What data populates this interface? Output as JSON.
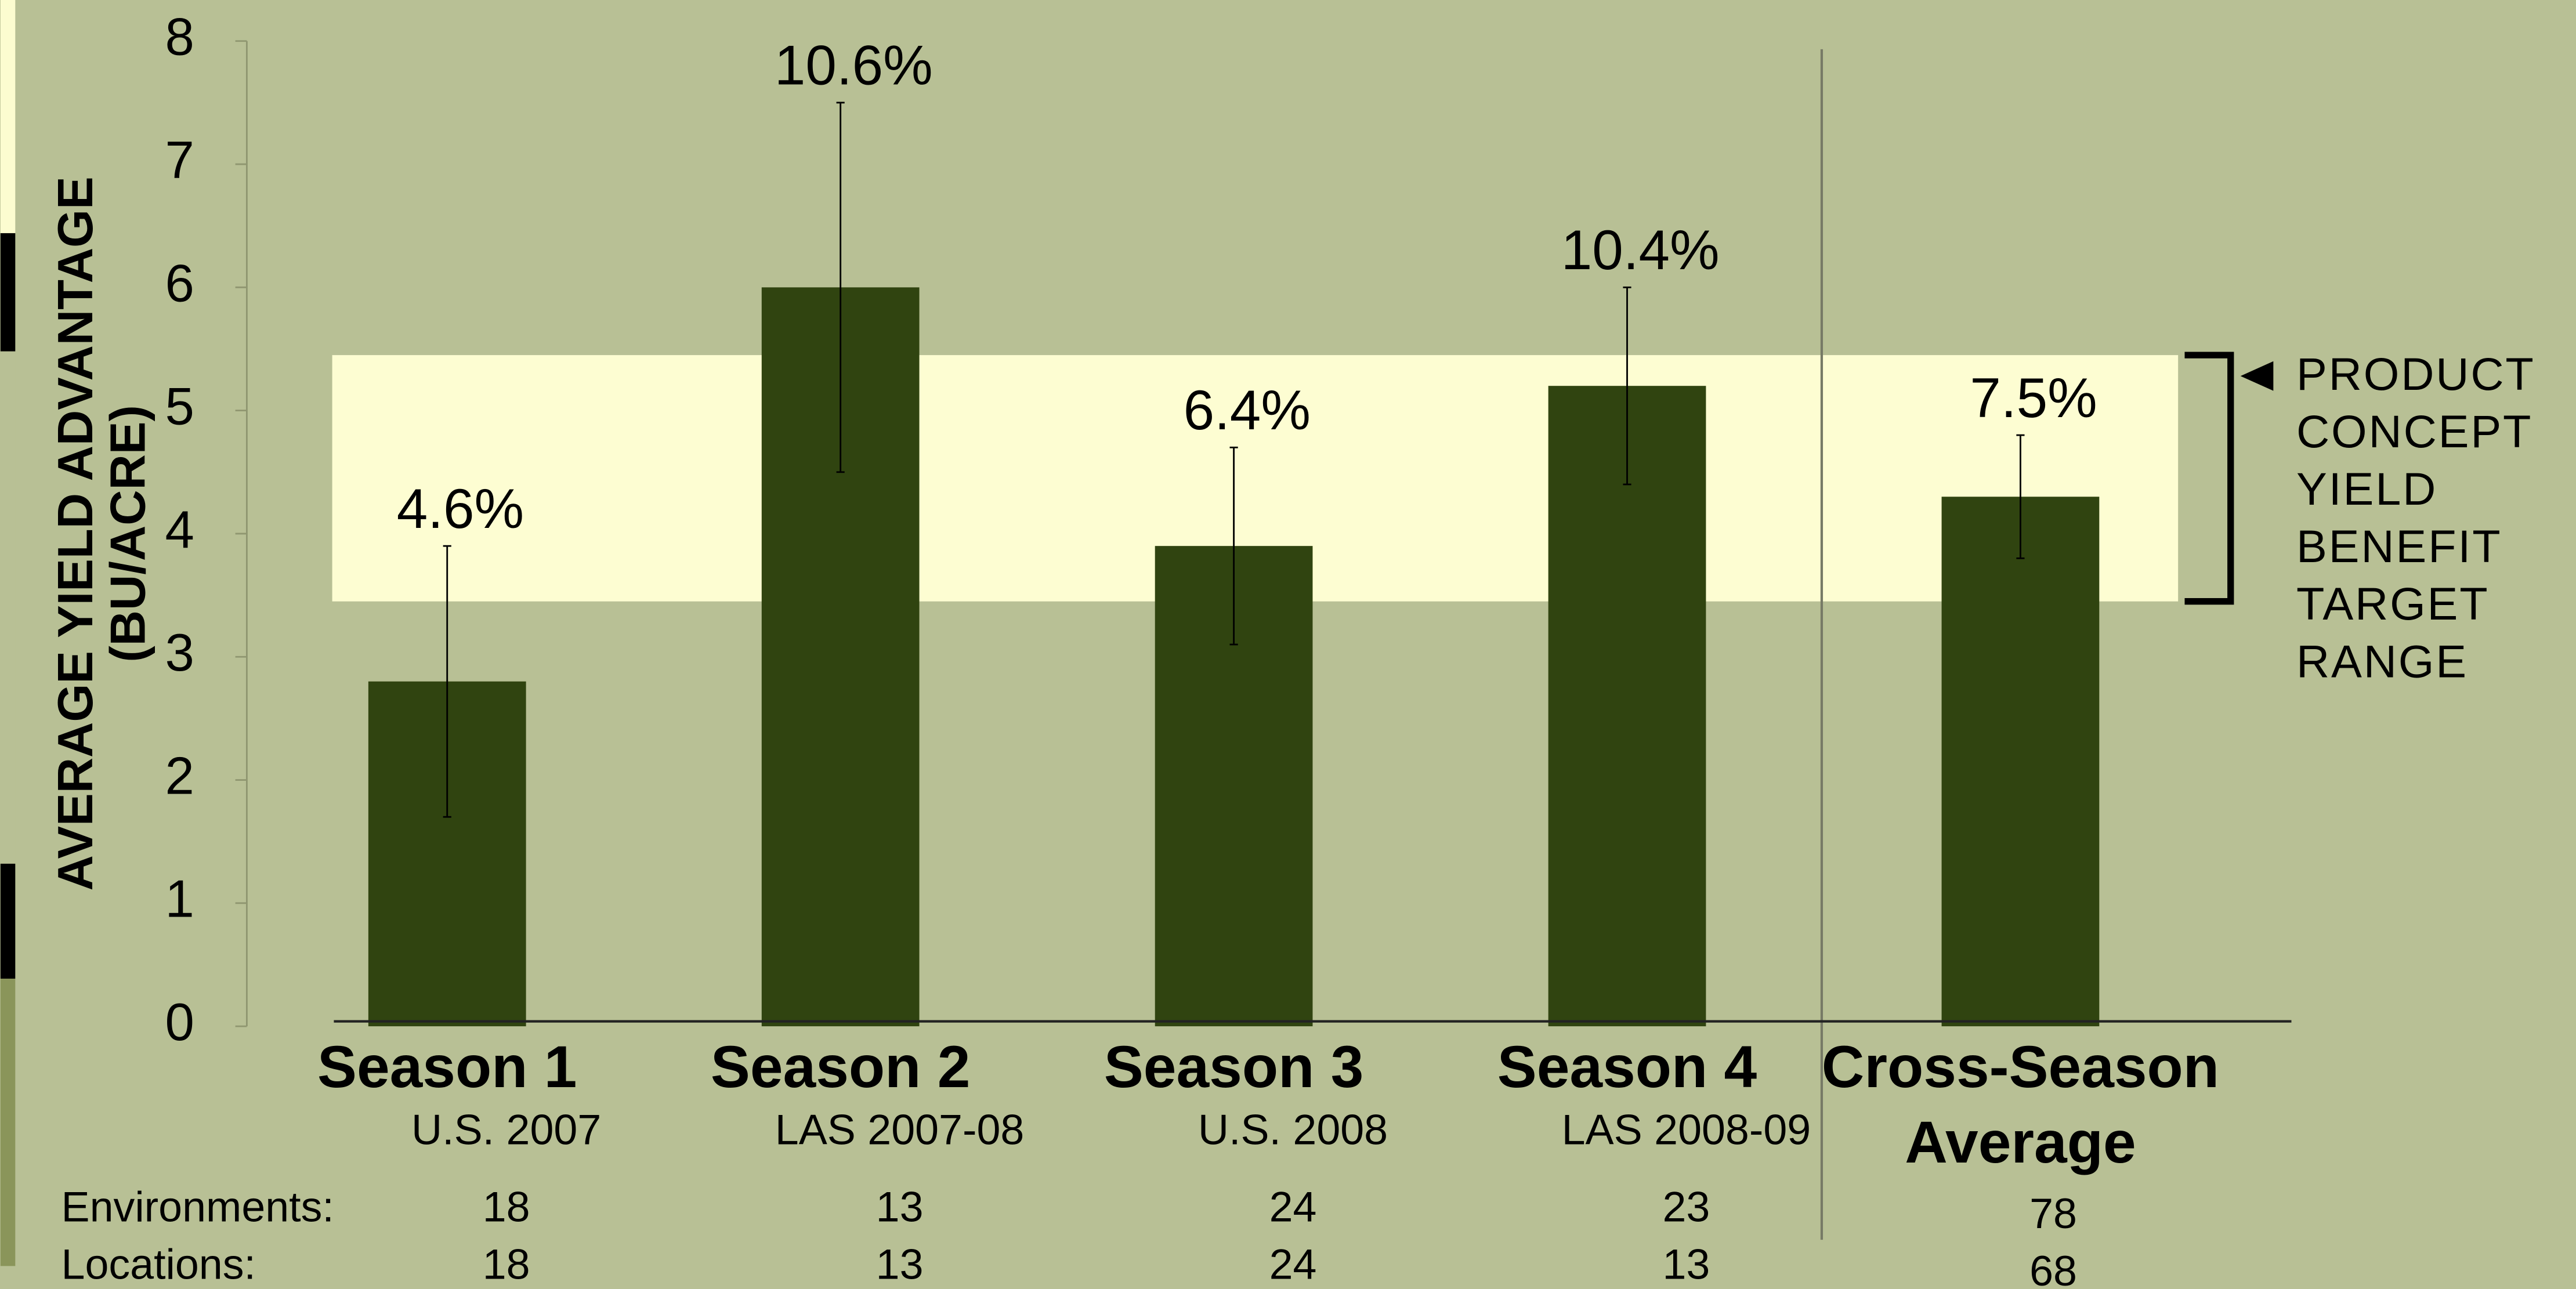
{
  "chart_data": {
    "type": "bar",
    "y_axis_label": [
      "AVERAGE YIELD ADVANTAGE",
      "(BU/ACRE)"
    ],
    "categories": [
      "Season 1",
      "Season 2",
      "Season 3",
      "Season 4",
      "Cross-Season Average"
    ],
    "subcategories": [
      "U.S. 2007",
      "LAS 2007-08",
      "U.S. 2008",
      "LAS 2008-09",
      null
    ],
    "series": [
      {
        "values": [
          2.8,
          6.0,
          3.9,
          5.2,
          4.3
        ],
        "errors": [
          1.1,
          1.5,
          0.8,
          0.8,
          0.5
        ],
        "color": "#304410",
        "value_labels": [
          "4.6%",
          "10.6%",
          "6.4%",
          "10.4%",
          "7.5%"
        ]
      }
    ],
    "ylim": [
      0,
      8
    ],
    "yticks": [
      0,
      1,
      2,
      3,
      4,
      5,
      6,
      7,
      8
    ],
    "target_range": [
      3.45,
      5.45
    ],
    "target_range_label": [
      "PRODUCT",
      "CONCEPT",
      "YIELD",
      "BENEFIT",
      "TARGET",
      "RANGE"
    ],
    "table": {
      "rows": [
        {
          "label": "Environments:",
          "values": [
            18,
            13,
            24,
            23,
            78
          ]
        },
        {
          "label": "Locations:",
          "values": [
            18,
            13,
            24,
            13,
            68
          ]
        }
      ]
    }
  }
}
